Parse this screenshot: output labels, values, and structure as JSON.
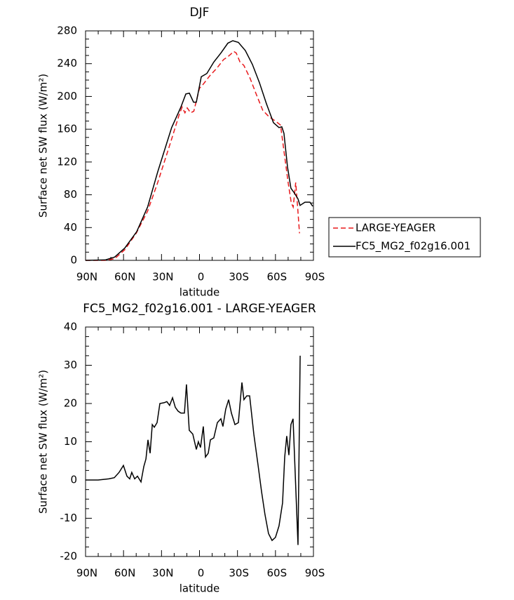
{
  "chart_data": [
    {
      "type": "line",
      "title": "DJF",
      "xlabel": "latitude",
      "ylabel": "Surface net SW flux (W/m²)",
      "xlim": [
        90,
        -90
      ],
      "xticks": [
        {
          "value": 90,
          "label": "90N"
        },
        {
          "value": 60,
          "label": "60N"
        },
        {
          "value": 30,
          "label": "30N"
        },
        0,
        {
          "value": -30,
          "label": "30S"
        },
        {
          "value": -60,
          "label": "60S"
        },
        {
          "value": -90,
          "label": "90S"
        }
      ],
      "ylim": [
        0,
        280
      ],
      "yticks": [
        0,
        40,
        80,
        120,
        160,
        200,
        240,
        280
      ],
      "legend": "right",
      "series": [
        {
          "name": "LARGE-YEAGER",
          "color": "#e8191c",
          "dash": true,
          "x": [
            90,
            74.5,
            67,
            59,
            50,
            41,
            33,
            22,
            16,
            13.7,
            11.5,
            9.7,
            7,
            4.5,
            0,
            -3,
            -8,
            -14,
            -19,
            -22,
            -25,
            -27,
            -29,
            -32,
            -35,
            -40,
            -45,
            -50,
            -55,
            -60,
            -64,
            -67,
            -70,
            -72.5,
            -74,
            -76,
            -77.5,
            -79
          ],
          "values": [
            0,
            0,
            2,
            13,
            33,
            60,
            95,
            148,
            178,
            187,
            180,
            186,
            180,
            182,
            210,
            215,
            225,
            235,
            245,
            248,
            252,
            255,
            253,
            242,
            238,
            222,
            202,
            183,
            175,
            170,
            165,
            130,
            95,
            70,
            65,
            95,
            65,
            33
          ]
        },
        {
          "name": "FC5_MG2_f02g16.001",
          "color": "#000000",
          "dash": false,
          "x": [
            90,
            74.5,
            67,
            59,
            49.6,
            41,
            33,
            22,
            14.7,
            10.8,
            8,
            4.7,
            2.5,
            -1.4,
            -5.8,
            -11.3,
            -16.9,
            -22.4,
            -26.3,
            -30.7,
            -36.2,
            -41.8,
            -47.3,
            -52.9,
            -58.4,
            -62.8,
            -65,
            -66.7,
            -69.5,
            -72.2,
            -75,
            -77.8,
            -79.4,
            -83.3,
            -87.2,
            -89.4
          ],
          "values": [
            0,
            0.5,
            4,
            15,
            35,
            65,
            108,
            162,
            187,
            203,
            204,
            193,
            193,
            224,
            228,
            242,
            253,
            265,
            268,
            266,
            256,
            239,
            217,
            191,
            168,
            162,
            163,
            155,
            114,
            88,
            82,
            75,
            67,
            71,
            71,
            66
          ]
        }
      ]
    },
    {
      "type": "line",
      "title": "FC5_MG2_f02g16.001 - LARGE-YEAGER",
      "xlabel": "latitude",
      "ylabel": "Surface net SW flux (W/m²)",
      "xlim": [
        90,
        -90
      ],
      "xticks": [
        {
          "value": 90,
          "label": "90N"
        },
        {
          "value": 60,
          "label": "60N"
        },
        {
          "value": 30,
          "label": "30N"
        },
        0,
        {
          "value": -30,
          "label": "30S"
        },
        {
          "value": -60,
          "label": "60S"
        },
        {
          "value": -90,
          "label": "90S"
        }
      ],
      "ylim": [
        -20,
        40
      ],
      "yticks": [
        -20,
        -10,
        0,
        10,
        20,
        30,
        40
      ],
      "series": [
        {
          "color": "#000000",
          "dash": false,
          "x": [
            90,
            80,
            71.7,
            67.3,
            63.5,
            60.1,
            57.3,
            55.1,
            53.5,
            51.2,
            49,
            46.2,
            44,
            42.3,
            40.7,
            39,
            37.3,
            35.7,
            33.5,
            31.3,
            28,
            25.8,
            23.6,
            21.3,
            19.1,
            16.9,
            14.7,
            11.9,
            10.3,
            8.1,
            5.3,
            2.5,
            0.9,
            -0.8,
            -3,
            -4.7,
            -6.9,
            -8.6,
            -11.3,
            -14.1,
            -16.9,
            -18.5,
            -20.7,
            -23,
            -25.2,
            -28,
            -30.7,
            -33.5,
            -35.1,
            -37.3,
            -39.6,
            -42.9,
            -46.2,
            -49,
            -51.7,
            -54.5,
            -57.3,
            -60,
            -62.8,
            -65.6,
            -67.3,
            -68.9,
            -70.6,
            -72.2,
            -73.9,
            -77.8,
            -79.5
          ],
          "values": [
            0,
            0,
            0.3,
            0.6,
            2,
            3.8,
            1,
            0.3,
            2,
            0.3,
            1,
            -0.5,
            3.5,
            5.5,
            10.5,
            7,
            14.5,
            13.8,
            15,
            20,
            20.2,
            20.5,
            19.5,
            21.5,
            19,
            18,
            17.5,
            17.5,
            25,
            13,
            12,
            8,
            10,
            8.5,
            14,
            6,
            7,
            10.5,
            11,
            15,
            16,
            14,
            18.5,
            21,
            17.5,
            14.5,
            15,
            25.5,
            21,
            22,
            22,
            12,
            4,
            -3,
            -9,
            -14,
            -15.8,
            -15,
            -12,
            -6,
            6,
            11.5,
            6.5,
            14.5,
            16,
            -17,
            32.5
          ]
        }
      ]
    }
  ]
}
